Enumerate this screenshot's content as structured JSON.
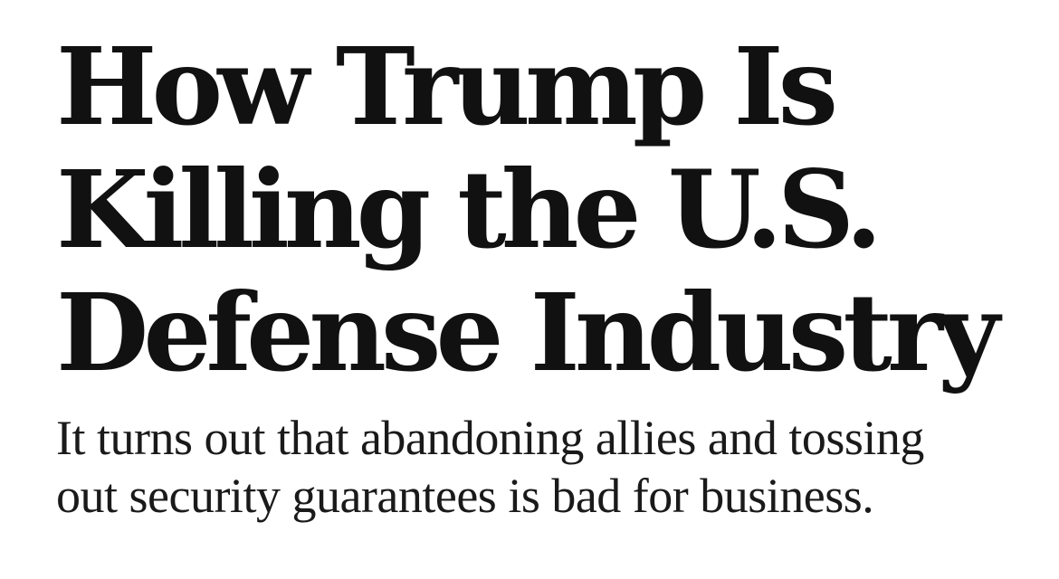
{
  "headline": {
    "lines": [
      "How Trump Is",
      "Killing the U.S.",
      "Defense Industry"
    ]
  },
  "dek": {
    "lines": [
      "It turns out that abandoning allies and tossing",
      "out security guarantees is bad for business."
    ]
  },
  "colors": {
    "headline": "#111111",
    "dek": "#1a1a1a",
    "background": "#ffffff"
  }
}
